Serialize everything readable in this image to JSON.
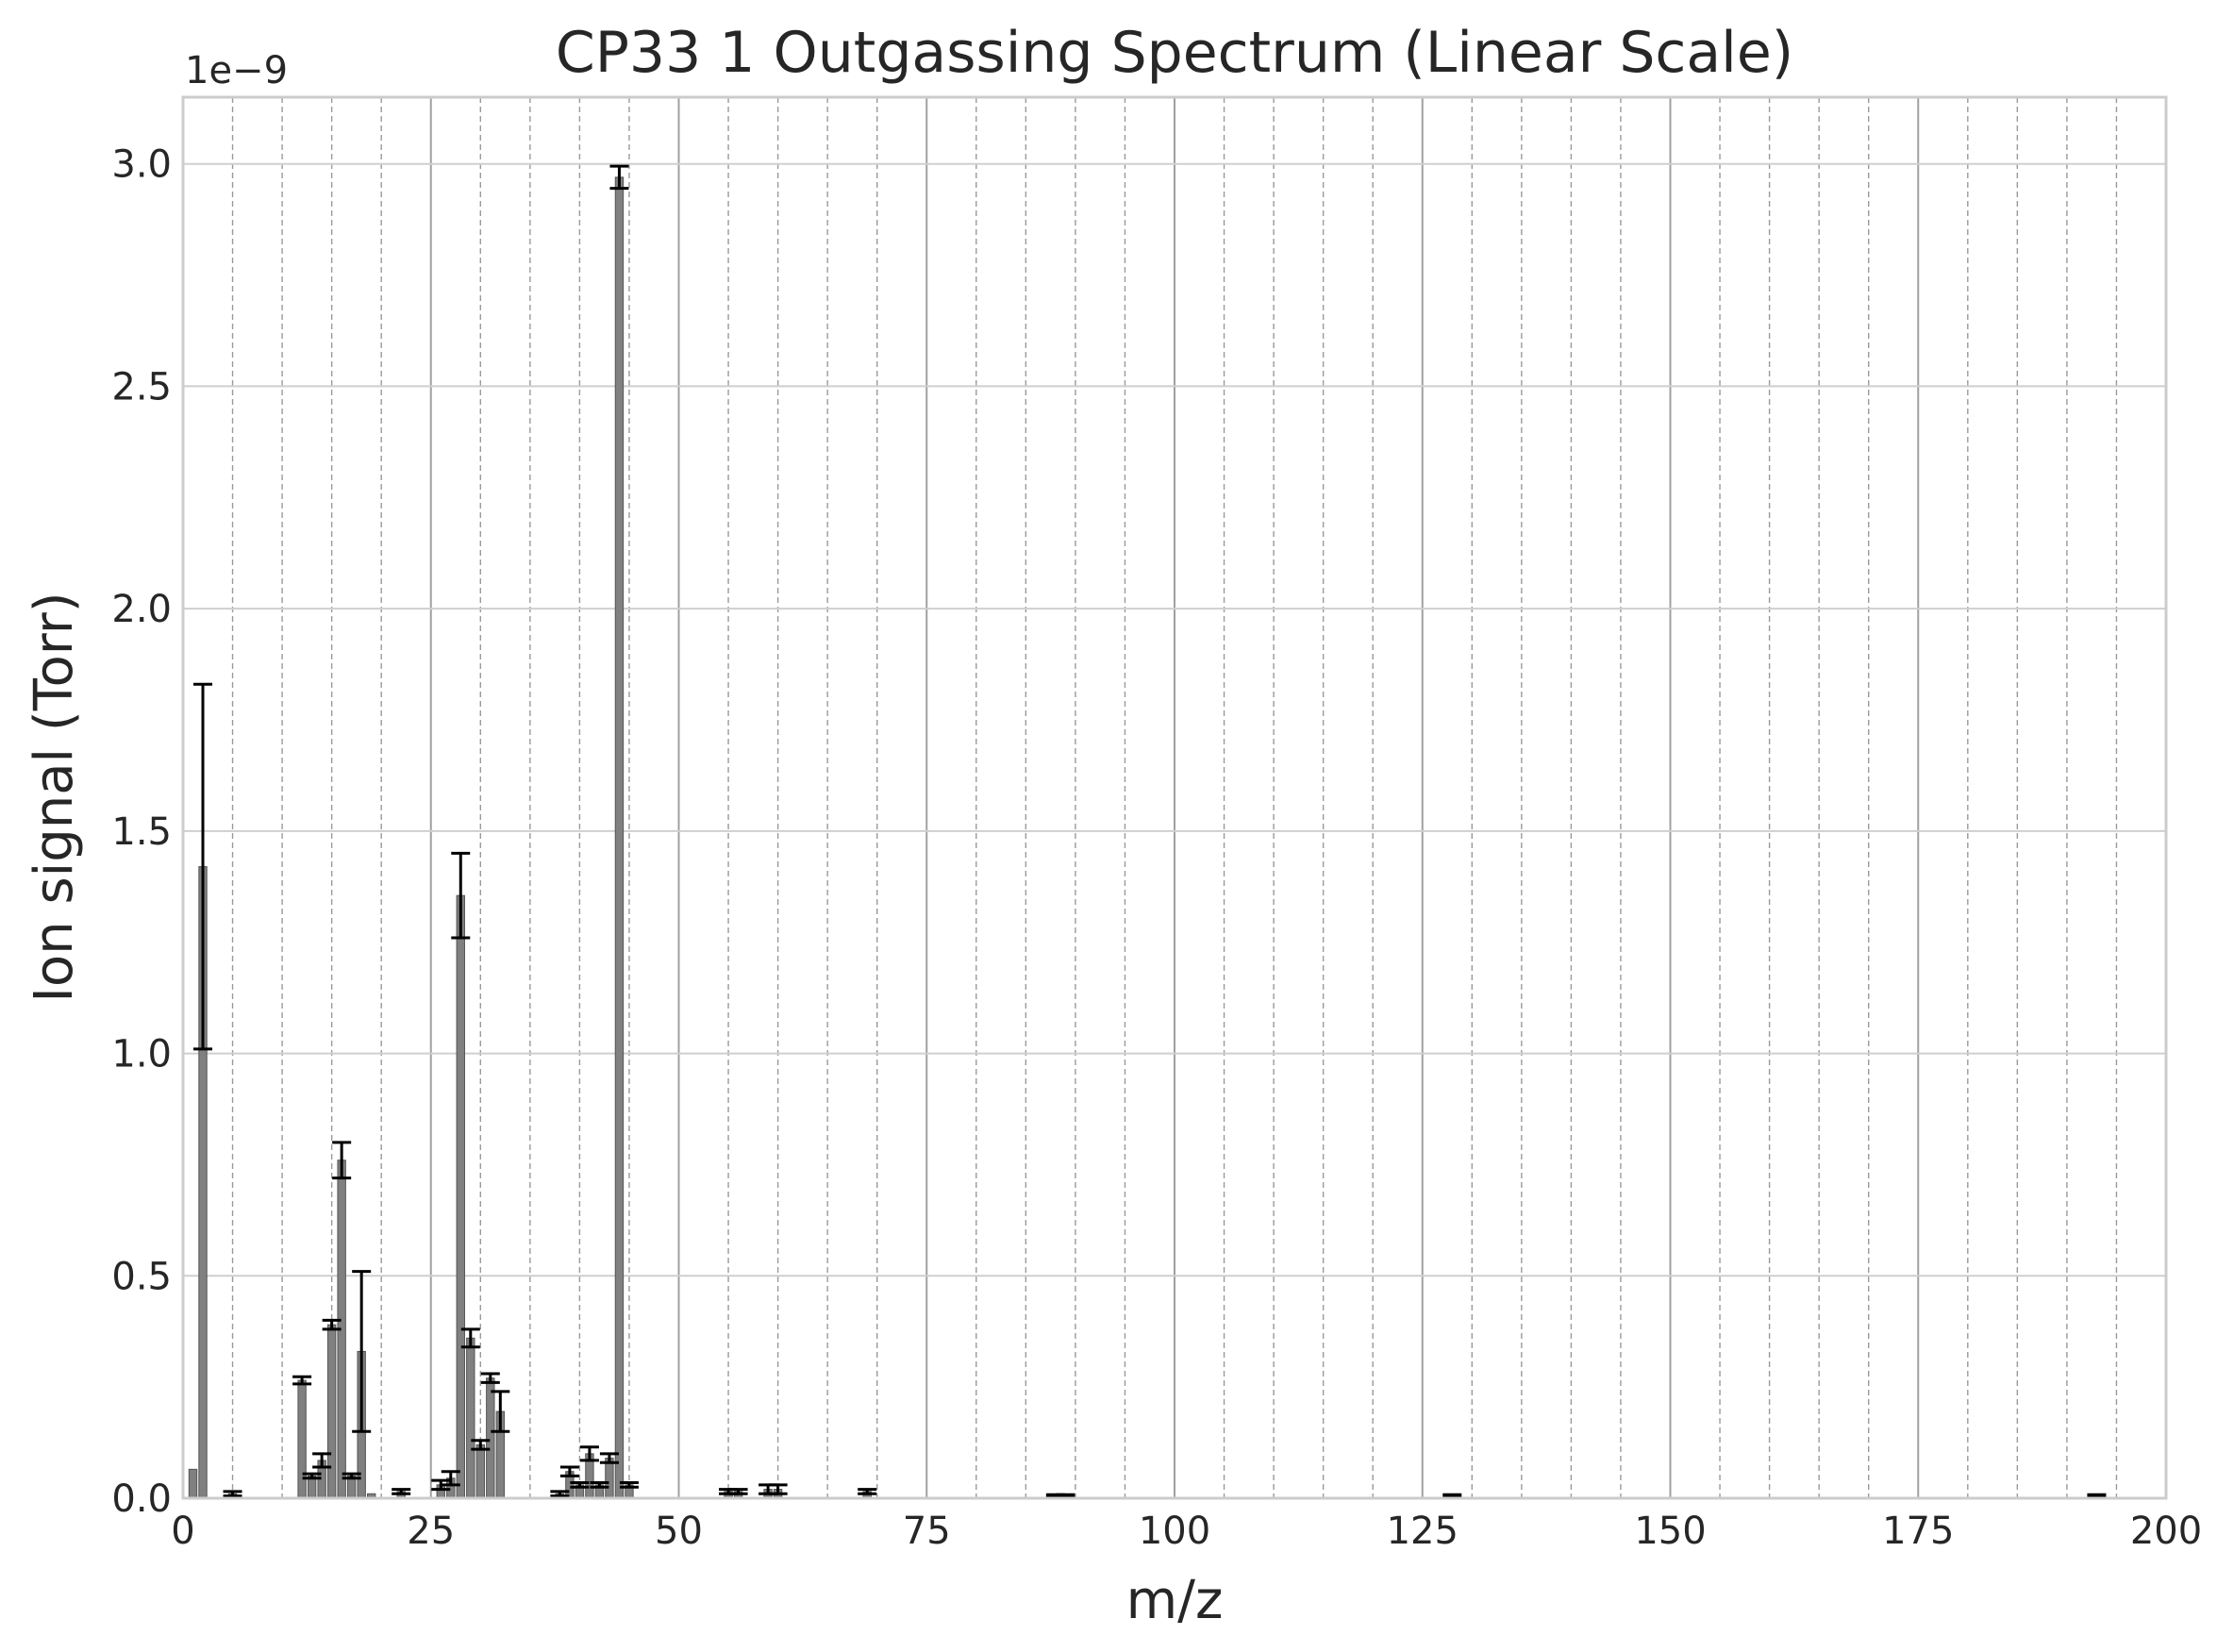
{
  "chart_data": {
    "type": "bar",
    "title": "CP33 1 Outgassing Spectrum (Linear Scale)",
    "xlabel": "m/z",
    "ylabel": "Ion signal (Torr)",
    "y_offset_label": "1e−9",
    "xlim": [
      0,
      200
    ],
    "ylim": [
      0,
      3.15
    ],
    "y_units_multiplier": 1e-09,
    "x_ticks": [
      0,
      25,
      50,
      75,
      100,
      125,
      150,
      175,
      200
    ],
    "x_tick_labels": [
      "0",
      "25",
      "50",
      "75",
      "100",
      "125",
      "150",
      "175",
      "200"
    ],
    "y_ticks": [
      0.0,
      0.5,
      1.0,
      1.5,
      2.0,
      2.5,
      3.0
    ],
    "y_tick_labels": [
      "0.0",
      "0.5",
      "1.0",
      "1.5",
      "2.0",
      "2.5",
      "3.0"
    ],
    "grid": {
      "major": true,
      "minor": true,
      "minor_x_step": 5,
      "minor_style": "dashed"
    },
    "bar_color": "#808080",
    "bar_edge_color": "#555555",
    "errorbar_color": "#000000",
    "series": [
      {
        "x": [
          1,
          2,
          5,
          12,
          13,
          14,
          15,
          16,
          17,
          18,
          19,
          22,
          26,
          27,
          28,
          29,
          30,
          31,
          32,
          38,
          39,
          40,
          41,
          42,
          43,
          44,
          45,
          55,
          56,
          59,
          60,
          69,
          88,
          89,
          128,
          193
        ],
        "values": [
          0.065,
          1.42,
          0.01,
          0.265,
          0.05,
          0.085,
          0.39,
          0.76,
          0.05,
          0.33,
          0.01,
          0.015,
          0.03,
          0.045,
          1.355,
          0.36,
          0.12,
          0.27,
          0.195,
          0.01,
          0.06,
          0.03,
          0.1,
          0.03,
          0.09,
          2.97,
          0.03,
          0.015,
          0.015,
          0.02,
          0.02,
          0.015,
          0.005,
          0.005,
          0.005,
          0.005
        ],
        "errors": [
          0.0,
          0.41,
          0.005,
          0.008,
          0.005,
          0.015,
          0.01,
          0.04,
          0.005,
          0.18,
          0.0,
          0.005,
          0.01,
          0.015,
          0.095,
          0.02,
          0.01,
          0.01,
          0.045,
          0.005,
          0.01,
          0.005,
          0.015,
          0.005,
          0.01,
          0.025,
          0.005,
          0.005,
          0.005,
          0.01,
          0.01,
          0.005,
          0.003,
          0.003,
          0.003,
          0.003
        ]
      }
    ]
  }
}
